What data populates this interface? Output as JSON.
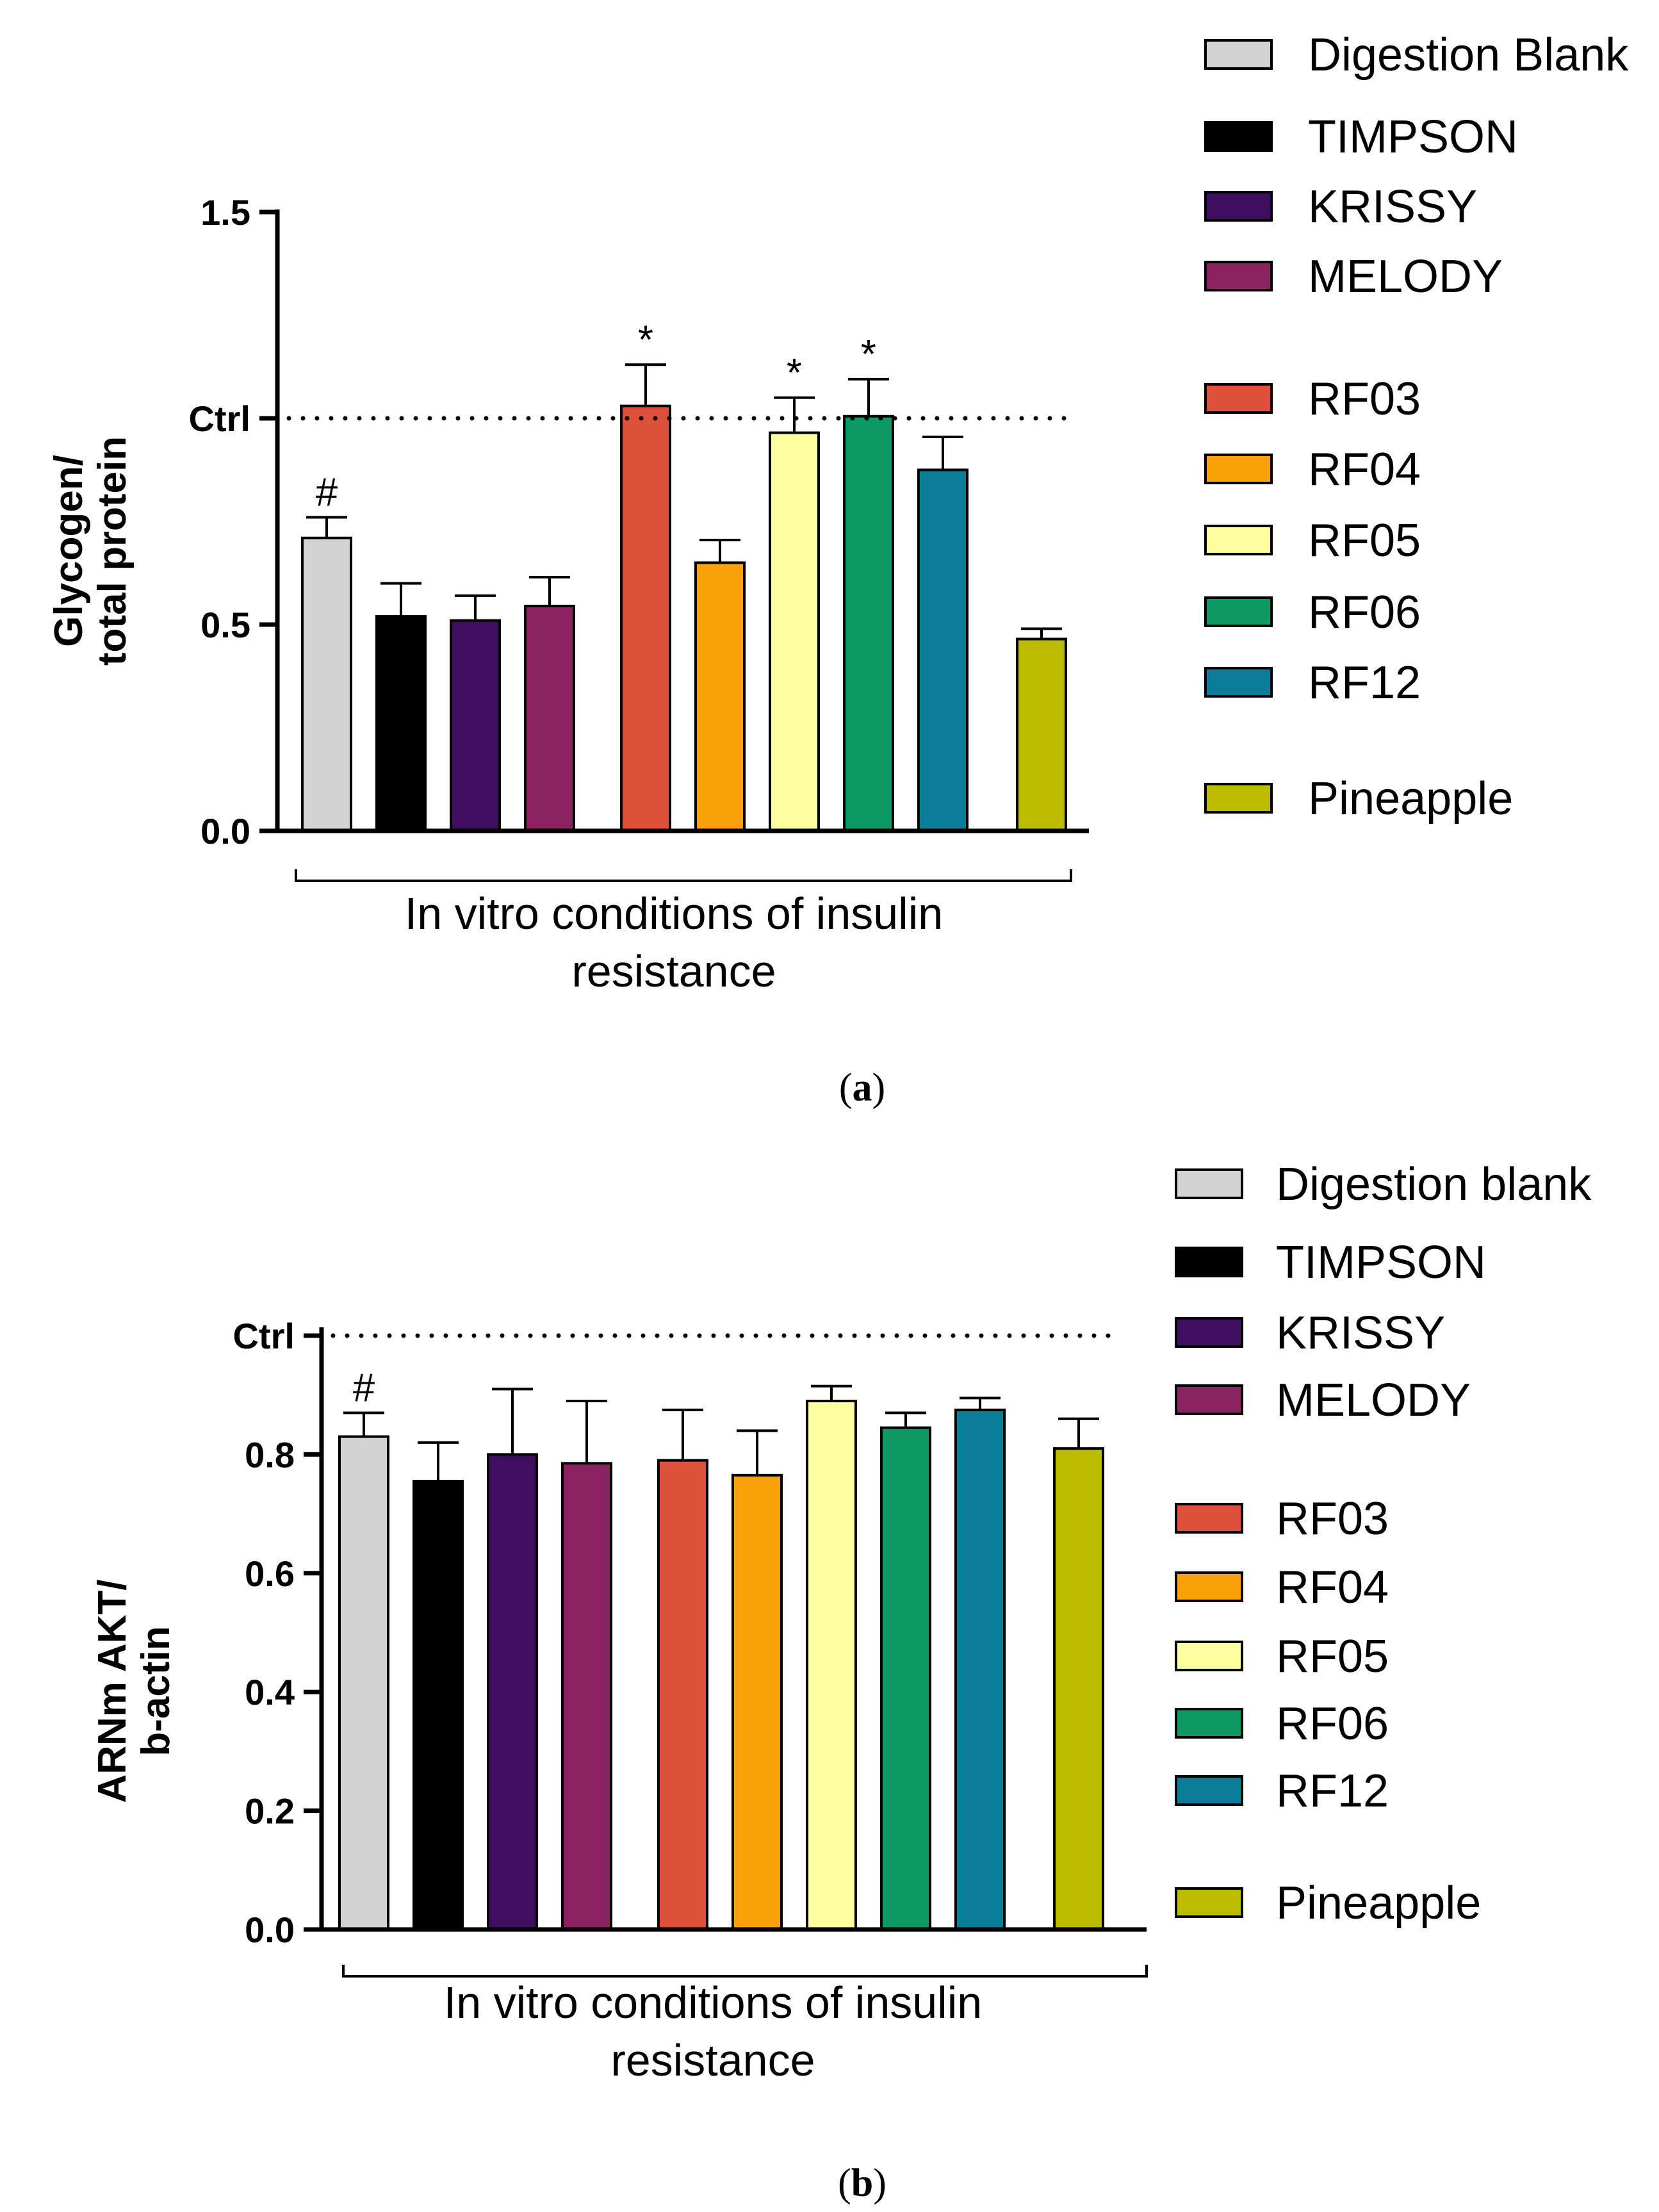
{
  "chart_data": [
    {
      "type": "bar",
      "panel": "a",
      "caption_letter": "a",
      "ylabel_lines": [
        "Glycogen/",
        "total protein"
      ],
      "ylim": [
        0,
        1.5
      ],
      "yticks": [
        "0.0",
        "0.5",
        "1.5"
      ],
      "ctrl_label": "Ctrl",
      "ctrl_value": 1.0,
      "xgroup_label_lines": [
        "In vitro conditions of insulin",
        "resistance"
      ],
      "legend_title": "",
      "legend": [
        "Digestion Blank",
        "TIMPSON",
        "KRISSY",
        "MELODY",
        "RF03",
        "RF04",
        "RF05",
        "RF06",
        "RF12",
        "Pineapple"
      ],
      "categories": [
        "Digestion Blank",
        "TIMPSON",
        "KRISSY",
        "MELODY",
        "RF03",
        "RF04",
        "RF05",
        "RF06",
        "RF12",
        "Pineapple"
      ],
      "values": [
        0.71,
        0.52,
        0.51,
        0.545,
        1.03,
        0.65,
        0.965,
        1.005,
        0.875,
        0.465
      ],
      "errors": [
        0.05,
        0.08,
        0.06,
        0.07,
        0.1,
        0.055,
        0.085,
        0.09,
        0.08,
        0.025
      ],
      "annotations": [
        "#",
        "",
        "",
        "",
        "*",
        "",
        "*",
        "*",
        "",
        ""
      ],
      "colors": [
        "#d3d3d3",
        "#000000",
        "#3f0e61",
        "#8b2362",
        "#dd513a",
        "#f8a10b",
        "#fcfe9f",
        "#0f9a63",
        "#0a7e99",
        "#bcbc00"
      ]
    },
    {
      "type": "bar",
      "panel": "b",
      "caption_letter": "b",
      "ylabel_lines": [
        "ARNm AKT/",
        "b-actin"
      ],
      "ylim": [
        0,
        1.0
      ],
      "yticks": [
        "0.0",
        "0.2",
        "0.4",
        "0.6",
        "0.8"
      ],
      "ctrl_label": "Ctrl",
      "ctrl_value": 1.0,
      "xgroup_label_lines": [
        "In vitro conditions of insulin",
        "resistance"
      ],
      "legend": [
        "Digestion blank",
        "TIMPSON",
        "KRISSY",
        "MELODY",
        "RF03",
        "RF04",
        "RF05",
        "RF06",
        "RF12",
        "Pineapple"
      ],
      "categories": [
        "Digestion blank",
        "TIMPSON",
        "KRISSY",
        "MELODY",
        "RF03",
        "RF04",
        "RF05",
        "RF06",
        "RF12",
        "Pineapple"
      ],
      "values": [
        0.83,
        0.755,
        0.8,
        0.785,
        0.79,
        0.765,
        0.89,
        0.845,
        0.875,
        0.81
      ],
      "errors": [
        0.04,
        0.065,
        0.11,
        0.105,
        0.085,
        0.075,
        0.025,
        0.025,
        0.02,
        0.05
      ],
      "annotations": [
        "#",
        "",
        "",
        "",
        "",
        "",
        "",
        "",
        "",
        ""
      ],
      "colors": [
        "#d3d3d3",
        "#000000",
        "#3f0e61",
        "#8b2362",
        "#dd513a",
        "#f8a10b",
        "#fcfe9f",
        "#0f9a63",
        "#0a7e99",
        "#bcbc00"
      ]
    }
  ]
}
